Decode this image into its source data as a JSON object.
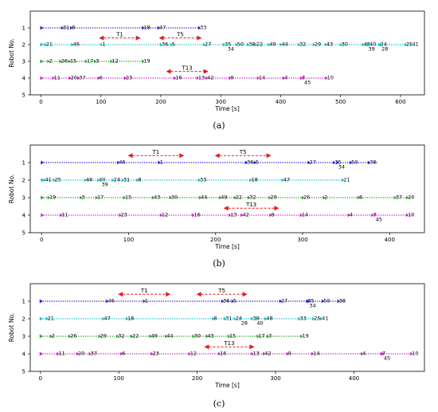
{
  "chart_data": [
    {
      "type": "scatter",
      "caption": "(a)",
      "xlabel": "Time [s]",
      "ylabel": "Robot No.",
      "xlim": [
        -18,
        640
      ],
      "ylim": [
        0,
        5
      ],
      "y_inverted": true,
      "xticks": [
        "0",
        "100",
        "200",
        "300",
        "400",
        "500",
        "600"
      ],
      "xtick_values": [
        0,
        100,
        200,
        300,
        400,
        500,
        600
      ],
      "yticks": [
        "1",
        "2",
        "3",
        "4",
        "5"
      ],
      "ytick_values": [
        1,
        2,
        3,
        4,
        5
      ],
      "series": [
        {
          "robot": 1,
          "color": "#1f1fdd",
          "start": 0,
          "end": 265,
          "points": [
            {
              "x": 35,
              "label": "31"
            },
            {
              "x": 50,
              "label": "8"
            },
            {
              "x": 170,
              "label": "18"
            },
            {
              "x": 196,
              "label": "47"
            },
            {
              "x": 264,
              "label": "33"
            }
          ]
        },
        {
          "robot": 2,
          "color": "#17becf",
          "start": 0,
          "end": 620,
          "points": [
            {
              "x": 7,
              "label": "21"
            },
            {
              "x": 52,
              "label": "46"
            },
            {
              "x": 101,
              "label": "1"
            },
            {
              "x": 200,
              "label": "36"
            },
            {
              "x": 217,
              "label": "5"
            },
            {
              "x": 272,
              "label": "27"
            },
            {
              "x": 305,
              "label": "35"
            },
            {
              "x": 310,
              "label": "34",
              "dy": 1
            },
            {
              "x": 326,
              "label": "50"
            },
            {
              "x": 345,
              "label": "38"
            },
            {
              "x": 358,
              "label": "22"
            },
            {
              "x": 380,
              "label": "49"
            },
            {
              "x": 400,
              "label": "44"
            },
            {
              "x": 430,
              "label": "32"
            },
            {
              "x": 455,
              "label": "29"
            },
            {
              "x": 475,
              "label": "43"
            },
            {
              "x": 500,
              "label": "30"
            },
            {
              "x": 537,
              "label": "48"
            },
            {
              "x": 547,
              "label": "40"
            },
            {
              "x": 545,
              "label": "39",
              "dy": 1
            },
            {
              "x": 565,
              "label": "24"
            },
            {
              "x": 567,
              "label": "28",
              "dy": 1
            },
            {
              "x": 608,
              "label": "25"
            },
            {
              "x": 618,
              "label": "41"
            }
          ]
        },
        {
          "robot": 3,
          "color": "#2ca02c",
          "start": 0,
          "end": 172,
          "points": [
            {
              "x": 12,
              "label": "2"
            },
            {
              "x": 32,
              "label": "26"
            },
            {
              "x": 47,
              "label": "15"
            },
            {
              "x": 75,
              "label": "17"
            },
            {
              "x": 90,
              "label": "3"
            },
            {
              "x": 117,
              "label": "12"
            },
            {
              "x": 170,
              "label": "19"
            }
          ]
        },
        {
          "robot": 4,
          "color": "#cc22cc",
          "start": 0,
          "end": 478,
          "points": [
            {
              "x": 20,
              "label": "11"
            },
            {
              "x": 48,
              "label": "20"
            },
            {
              "x": 62,
              "label": "37"
            },
            {
              "x": 96,
              "label": "6"
            },
            {
              "x": 140,
              "label": "23"
            },
            {
              "x": 223,
              "label": "16"
            },
            {
              "x": 261,
              "label": "13"
            },
            {
              "x": 276,
              "label": "42"
            },
            {
              "x": 315,
              "label": "9"
            },
            {
              "x": 362,
              "label": "14"
            },
            {
              "x": 405,
              "label": "4"
            },
            {
              "x": 434,
              "label": "7"
            },
            {
              "x": 438,
              "label": "45",
              "dy": 1
            },
            {
              "x": 476,
              "label": "10"
            }
          ]
        }
      ],
      "tasks": [
        {
          "label": "T1",
          "y": 1.6,
          "start": 98,
          "end": 165
        },
        {
          "label": "T5",
          "y": 1.6,
          "start": 198,
          "end": 267
        },
        {
          "label": "T13",
          "y": 3.6,
          "start": 210,
          "end": 278
        }
      ]
    },
    {
      "type": "scatter",
      "caption": "(b)",
      "xlabel": "Time [s]",
      "ylabel": "Robot No.",
      "xlim": [
        -13,
        440
      ],
      "ylim": [
        0,
        5
      ],
      "y_inverted": true,
      "xticks": [
        "0",
        "100",
        "200",
        "300",
        "400"
      ],
      "xtick_values": [
        0,
        100,
        200,
        300,
        400
      ],
      "yticks": [
        "1",
        "2",
        "3",
        "4",
        "5"
      ],
      "ytick_values": [
        1,
        2,
        3,
        4,
        5
      ],
      "series": [
        {
          "robot": 1,
          "color": "#1f1fdd",
          "start": 0,
          "end": 386,
          "points": [
            {
              "x": 88,
              "label": "46"
            },
            {
              "x": 135,
              "label": "1"
            },
            {
              "x": 235,
              "label": "36"
            },
            {
              "x": 245,
              "label": "5"
            },
            {
              "x": 307,
              "label": "27"
            },
            {
              "x": 336,
              "label": "35"
            },
            {
              "x": 340,
              "label": "34",
              "dy": 1
            },
            {
              "x": 355,
              "label": "50"
            },
            {
              "x": 376,
              "label": "38"
            }
          ]
        },
        {
          "robot": 2,
          "color": "#17becf",
          "start": 0,
          "end": 348,
          "points": [
            {
              "x": 3,
              "label": "41"
            },
            {
              "x": 14,
              "label": "25"
            },
            {
              "x": 50,
              "label": "48"
            },
            {
              "x": 65,
              "label": "40"
            },
            {
              "x": 68,
              "label": "39",
              "dy": 1
            },
            {
              "x": 82,
              "label": "24"
            },
            {
              "x": 93,
              "label": "31"
            },
            {
              "x": 110,
              "label": "8"
            },
            {
              "x": 181,
              "label": "33"
            },
            {
              "x": 240,
              "label": "18"
            },
            {
              "x": 277,
              "label": "47"
            },
            {
              "x": 346,
              "label": "21"
            }
          ]
        },
        {
          "robot": 3,
          "color": "#2ca02c",
          "start": 0,
          "end": 428,
          "points": [
            {
              "x": 8,
              "label": "19"
            },
            {
              "x": 45,
              "label": "3"
            },
            {
              "x": 63,
              "label": "17"
            },
            {
              "x": 95,
              "label": "15"
            },
            {
              "x": 128,
              "label": "43"
            },
            {
              "x": 148,
              "label": "30"
            },
            {
              "x": 182,
              "label": "44"
            },
            {
              "x": 205,
              "label": "49"
            },
            {
              "x": 222,
              "label": "22"
            },
            {
              "x": 238,
              "label": "32"
            },
            {
              "x": 262,
              "label": "29"
            },
            {
              "x": 300,
              "label": "26"
            },
            {
              "x": 324,
              "label": "2"
            },
            {
              "x": 364,
              "label": "6"
            },
            {
              "x": 406,
              "label": "37"
            },
            {
              "x": 420,
              "label": "20"
            }
          ]
        },
        {
          "robot": 4,
          "color": "#cc22cc",
          "start": 0,
          "end": 428,
          "points": [
            {
              "x": 22,
              "label": "11"
            },
            {
              "x": 90,
              "label": "23"
            },
            {
              "x": 137,
              "label": "12"
            },
            {
              "x": 174,
              "label": "16"
            },
            {
              "x": 216,
              "label": "13"
            },
            {
              "x": 230,
              "label": "42"
            },
            {
              "x": 263,
              "label": "9"
            },
            {
              "x": 298,
              "label": "14"
            },
            {
              "x": 353,
              "label": "4"
            },
            {
              "x": 380,
              "label": "7"
            },
            {
              "x": 383,
              "label": "45",
              "dy": 1
            },
            {
              "x": 420,
              "label": "10"
            }
          ]
        }
      ],
      "tasks": [
        {
          "label": "T1",
          "y": 0.6,
          "start": 100,
          "end": 163
        },
        {
          "label": "T5",
          "y": 0.6,
          "start": 200,
          "end": 263
        },
        {
          "label": "T13",
          "y": 3.6,
          "start": 210,
          "end": 272
        }
      ]
    },
    {
      "type": "scatter",
      "caption": "(c)",
      "xlabel": "Time [s]",
      "ylabel": "Robot No.",
      "xlim": [
        -13,
        490
      ],
      "ylim": [
        0,
        5
      ],
      "y_inverted": true,
      "xticks": [
        "0",
        "100",
        "200",
        "300",
        "400"
      ],
      "xtick_values": [
        0,
        100,
        200,
        300,
        400
      ],
      "yticks": [
        "1",
        "2",
        "3",
        "4",
        "5"
      ],
      "ytick_values": [
        1,
        2,
        3,
        4,
        5
      ],
      "series": [
        {
          "robot": 1,
          "color": "#1f1fdd",
          "start": 0,
          "end": 388,
          "points": [
            {
              "x": 85,
              "label": "46"
            },
            {
              "x": 132,
              "label": "1"
            },
            {
              "x": 232,
              "label": "36"
            },
            {
              "x": 245,
              "label": "5"
            },
            {
              "x": 306,
              "label": "27"
            },
            {
              "x": 340,
              "label": "35"
            },
            {
              "x": 342,
              "label": "34",
              "dy": 1
            },
            {
              "x": 360,
              "label": "50"
            },
            {
              "x": 380,
              "label": "38"
            }
          ]
        },
        {
          "robot": 2,
          "color": "#17becf",
          "start": 0,
          "end": 358,
          "points": [
            {
              "x": 8,
              "label": "21"
            },
            {
              "x": 80,
              "label": "47"
            },
            {
              "x": 110,
              "label": "18"
            },
            {
              "x": 220,
              "label": "8"
            },
            {
              "x": 235,
              "label": "31"
            },
            {
              "x": 248,
              "label": "24"
            },
            {
              "x": 255,
              "label": "28",
              "dy": 1
            },
            {
              "x": 270,
              "label": "39"
            },
            {
              "x": 275,
              "label": "40",
              "dy": 1
            },
            {
              "x": 287,
              "label": "48"
            },
            {
              "x": 330,
              "label": "33"
            },
            {
              "x": 348,
              "label": "25"
            },
            {
              "x": 358,
              "label": "41"
            }
          ]
        },
        {
          "robot": 3,
          "color": "#2ca02c",
          "start": 0,
          "end": 335,
          "points": [
            {
              "x": 13,
              "label": "2"
            },
            {
              "x": 37,
              "label": "26"
            },
            {
              "x": 75,
              "label": "29"
            },
            {
              "x": 98,
              "label": "32"
            },
            {
              "x": 116,
              "label": "22"
            },
            {
              "x": 140,
              "label": "49"
            },
            {
              "x": 160,
              "label": "44"
            },
            {
              "x": 195,
              "label": "30"
            },
            {
              "x": 212,
              "label": "43"
            },
            {
              "x": 240,
              "label": "15"
            },
            {
              "x": 277,
              "label": "17"
            },
            {
              "x": 290,
              "label": "3"
            },
            {
              "x": 333,
              "label": "19"
            }
          ]
        },
        {
          "robot": 4,
          "color": "#cc22cc",
          "start": 0,
          "end": 476,
          "points": [
            {
              "x": 22,
              "label": "11"
            },
            {
              "x": 47,
              "label": "20"
            },
            {
              "x": 63,
              "label": "37"
            },
            {
              "x": 103,
              "label": "6"
            },
            {
              "x": 142,
              "label": "23"
            },
            {
              "x": 190,
              "label": "12"
            },
            {
              "x": 228,
              "label": "16"
            },
            {
              "x": 270,
              "label": "13"
            },
            {
              "x": 285,
              "label": "42"
            },
            {
              "x": 315,
              "label": "9"
            },
            {
              "x": 347,
              "label": "14"
            },
            {
              "x": 410,
              "label": "4"
            },
            {
              "x": 435,
              "label": "7"
            },
            {
              "x": 437,
              "label": "45",
              "dy": 1
            },
            {
              "x": 473,
              "label": "10"
            }
          ]
        }
      ],
      "tasks": [
        {
          "label": "T1",
          "y": 0.6,
          "start": 100,
          "end": 165
        },
        {
          "label": "T5",
          "y": 0.6,
          "start": 200,
          "end": 263
        },
        {
          "label": "T13",
          "y": 3.6,
          "start": 210,
          "end": 272
        }
      ]
    }
  ]
}
